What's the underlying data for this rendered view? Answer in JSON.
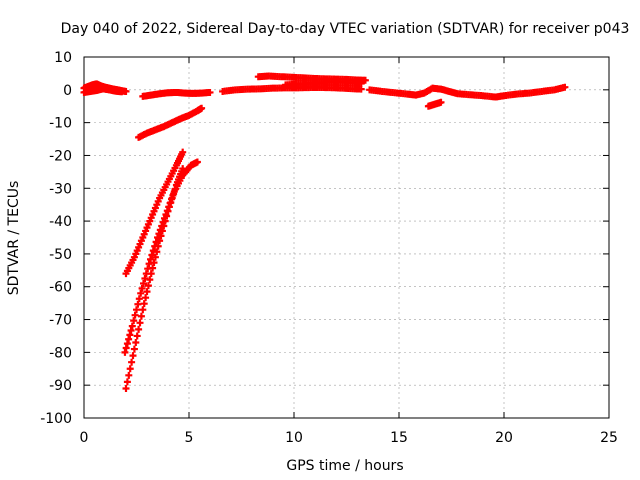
{
  "chart_data": {
    "type": "scatter",
    "title": "Day 040 of 2022, Sidereal Day-to-day VTEC variation (SDTVAR) for receiver p043",
    "xlabel": "GPS time / hours",
    "ylabel": "SDTVAR / TECUs",
    "xlim": [
      0,
      25
    ],
    "ylim": [
      -100,
      10
    ],
    "xticks": [
      0,
      5,
      10,
      15,
      20,
      25
    ],
    "yticks": [
      10,
      0,
      -10,
      -20,
      -30,
      -40,
      -50,
      -60,
      -70,
      -80,
      -90,
      -100
    ],
    "xtick_labels": [
      "0",
      "5",
      "10",
      "15",
      "20",
      "25"
    ],
    "ytick_labels": [
      "10",
      "0",
      "-10",
      "-20",
      "-30",
      "-40",
      "-50",
      "-60",
      "-70",
      "-80",
      "-90",
      "-100"
    ],
    "grid": true,
    "marker": "plus",
    "color": "#ff0000",
    "series": [
      {
        "name": "arc-early-zero",
        "points": [
          [
            0,
            0.5
          ],
          [
            0.2,
            1
          ],
          [
            0.4,
            1.5
          ],
          [
            0.6,
            1.8
          ],
          [
            0.8,
            1.2
          ],
          [
            1.0,
            0.8
          ],
          [
            1.2,
            0.5
          ],
          [
            1.4,
            0.2
          ],
          [
            1.6,
            0
          ],
          [
            1.8,
            -0.3
          ],
          [
            2.0,
            -0.5
          ]
        ]
      },
      {
        "name": "arc-early-zero-b",
        "points": [
          [
            0,
            -0.8
          ],
          [
            0.3,
            -0.5
          ],
          [
            0.6,
            -0.2
          ],
          [
            0.9,
            0.3
          ],
          [
            1.2,
            0
          ],
          [
            1.5,
            -0.4
          ],
          [
            1.8,
            -0.6
          ]
        ]
      },
      {
        "name": "arc-mid-zero",
        "points": [
          [
            2.8,
            -2
          ],
          [
            3.2,
            -1.6
          ],
          [
            3.6,
            -1.2
          ],
          [
            4.0,
            -0.9
          ],
          [
            4.4,
            -0.8
          ],
          [
            4.8,
            -1
          ],
          [
            5.2,
            -1.1
          ],
          [
            5.6,
            -1
          ],
          [
            6.0,
            -0.8
          ]
        ]
      },
      {
        "name": "arc-long-zero",
        "points": [
          [
            6.6,
            -0.5
          ],
          [
            7.2,
            0
          ],
          [
            7.8,
            0.2
          ],
          [
            8.4,
            0.3
          ],
          [
            9.0,
            0.5
          ],
          [
            9.6,
            0.6
          ],
          [
            10.2,
            0.6
          ],
          [
            10.8,
            0.7
          ],
          [
            11.4,
            0.7
          ],
          [
            12.0,
            0.6
          ],
          [
            12.6,
            0.4
          ],
          [
            13.2,
            0.2
          ]
        ]
      },
      {
        "name": "arc-high",
        "points": [
          [
            8.3,
            4
          ],
          [
            8.8,
            4.2
          ],
          [
            9.4,
            4
          ],
          [
            10,
            3.8
          ],
          [
            10.6,
            3.6
          ],
          [
            11.2,
            3.4
          ],
          [
            11.8,
            3.3
          ],
          [
            12.4,
            3.2
          ],
          [
            13.0,
            3.0
          ],
          [
            13.4,
            2.9
          ]
        ]
      },
      {
        "name": "arc-high-b",
        "points": [
          [
            9.6,
            1.5
          ],
          [
            10.2,
            1.8
          ],
          [
            10.8,
            2.0
          ],
          [
            11.4,
            2.2
          ],
          [
            12.0,
            2.3
          ],
          [
            12.6,
            2.2
          ],
          [
            13.2,
            1.9
          ]
        ]
      },
      {
        "name": "arc-late-zero",
        "points": [
          [
            13.6,
            0
          ],
          [
            14.2,
            -0.5
          ],
          [
            14.8,
            -0.9
          ],
          [
            15.4,
            -1.3
          ],
          [
            15.8,
            -1.6
          ],
          [
            16.2,
            -1
          ],
          [
            16.6,
            0.5
          ],
          [
            17.0,
            0.2
          ],
          [
            17.4,
            -0.5
          ],
          [
            17.8,
            -1.2
          ],
          [
            18.4,
            -1.5
          ],
          [
            19.0,
            -1.8
          ],
          [
            19.6,
            -2.2
          ],
          [
            20.0,
            -1.8
          ],
          [
            20.6,
            -1.3
          ],
          [
            21.2,
            -1
          ],
          [
            21.8,
            -0.5
          ],
          [
            22.4,
            0
          ],
          [
            22.9,
            0.8
          ]
        ]
      },
      {
        "name": "arc-late-dip",
        "points": [
          [
            16.4,
            -5
          ],
          [
            16.7,
            -4.4
          ],
          [
            17.0,
            -3.8
          ]
        ]
      },
      {
        "name": "arc-neg-10",
        "points": [
          [
            2.6,
            -14.5
          ],
          [
            3.0,
            -13.2
          ],
          [
            3.4,
            -12.2
          ],
          [
            3.8,
            -11.2
          ],
          [
            4.2,
            -10
          ],
          [
            4.6,
            -8.8
          ],
          [
            5.0,
            -7.8
          ],
          [
            5.4,
            -6.4
          ],
          [
            5.6,
            -5.6
          ]
        ]
      },
      {
        "name": "arc-steep-a",
        "points": [
          [
            2.0,
            -56
          ],
          [
            2.4,
            -51
          ],
          [
            2.8,
            -45
          ],
          [
            3.2,
            -39
          ],
          [
            3.6,
            -33
          ],
          [
            4.0,
            -28
          ],
          [
            4.4,
            -23
          ],
          [
            4.7,
            -19
          ]
        ]
      },
      {
        "name": "arc-steep-b",
        "points": [
          [
            1.95,
            -80
          ],
          [
            2.3,
            -72
          ],
          [
            2.7,
            -62
          ],
          [
            3.1,
            -53
          ],
          [
            3.5,
            -45
          ],
          [
            3.9,
            -38
          ],
          [
            4.3,
            -31
          ],
          [
            4.7,
            -26
          ],
          [
            5.1,
            -23
          ],
          [
            5.4,
            -22
          ]
        ]
      },
      {
        "name": "arc-steep-c",
        "points": [
          [
            2.0,
            -91
          ],
          [
            2.4,
            -79
          ],
          [
            2.8,
            -67
          ],
          [
            3.2,
            -56
          ],
          [
            3.6,
            -46
          ],
          [
            4.0,
            -37
          ],
          [
            4.4,
            -29
          ],
          [
            4.7,
            -24
          ]
        ]
      }
    ]
  }
}
